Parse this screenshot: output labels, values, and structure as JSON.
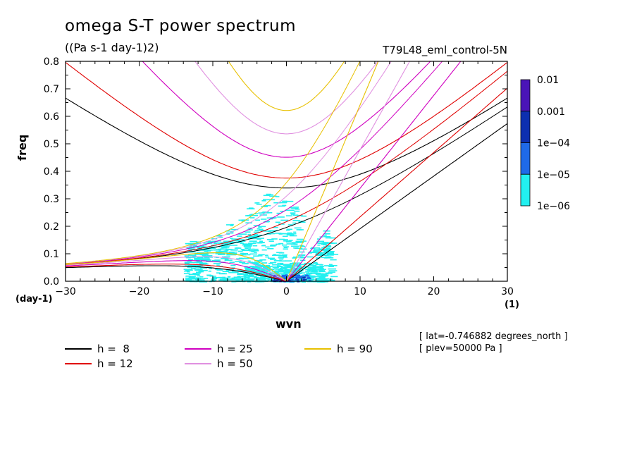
{
  "title": "omega S-T power spectrum",
  "subtitle": "((Pa s-1 day-1)2)",
  "dataset_label": "T79L48_eml_control-5N",
  "info_lines": [
    "[ lat=-0.746882 degrees_north ]",
    "[ plev=50000 Pa ]"
  ],
  "colorbar": {
    "labels": [
      "0.01",
      "0.001",
      "1e-04",
      "1e-05",
      "1e-06"
    ],
    "colors": [
      "#4a14b8",
      "#0d2fb0",
      "#1f6ae8",
      "#22f0f0"
    ]
  },
  "chart_data": {
    "type": "contour",
    "xlabel": "wvn",
    "ylabel": "freq",
    "x_unit": "(1)",
    "y_unit": "(day-1)",
    "xlim": [
      -30,
      30
    ],
    "ylim": [
      0,
      0.8
    ],
    "x_ticks": [
      "-30",
      "-20",
      "-10",
      "0",
      "10",
      "20",
      "30"
    ],
    "y_ticks": [
      "0.0",
      "0.1",
      "0.2",
      "0.3",
      "0.4",
      "0.5",
      "0.6",
      "0.7",
      "0.8"
    ],
    "dispersion_curves": [
      {
        "name": "h =  8",
        "h": 8,
        "color": "#000000"
      },
      {
        "name": "h = 12",
        "h": 12,
        "color": "#e00000"
      },
      {
        "name": "h = 25",
        "h": 25,
        "color": "#d000c0"
      },
      {
        "name": "h = 50",
        "h": 50,
        "color": "#e090e0"
      },
      {
        "name": "h = 90",
        "h": 90,
        "color": "#e8c000"
      }
    ],
    "power_field_levels": [
      "1e-06",
      "1e-05",
      "1e-04",
      "0.001",
      "0.01"
    ]
  }
}
